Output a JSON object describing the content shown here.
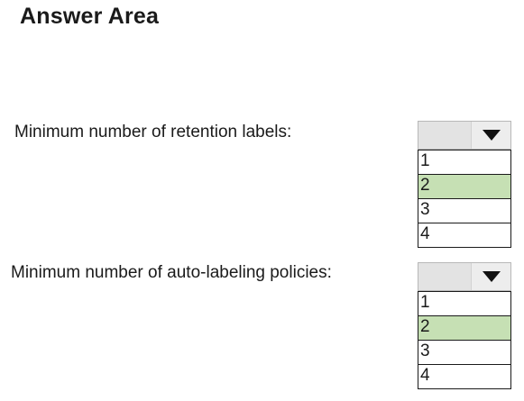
{
  "title": "Answer Area",
  "questions": [
    {
      "label": "Minimum number of retention labels:",
      "options": [
        "1",
        "2",
        "3",
        "4"
      ],
      "selected": "2",
      "arrow_icon": "triangle-down-icon"
    },
    {
      "label": "Minimum number of auto-labeling policies:",
      "options": [
        "1",
        "2",
        "3",
        "4"
      ],
      "selected": "2",
      "arrow_icon": "triangle-down-icon"
    }
  ],
  "colors": {
    "selected_option": "#c6e0b4",
    "dropdown_header": "#e6e6e6",
    "border": "#1a1a1a"
  }
}
